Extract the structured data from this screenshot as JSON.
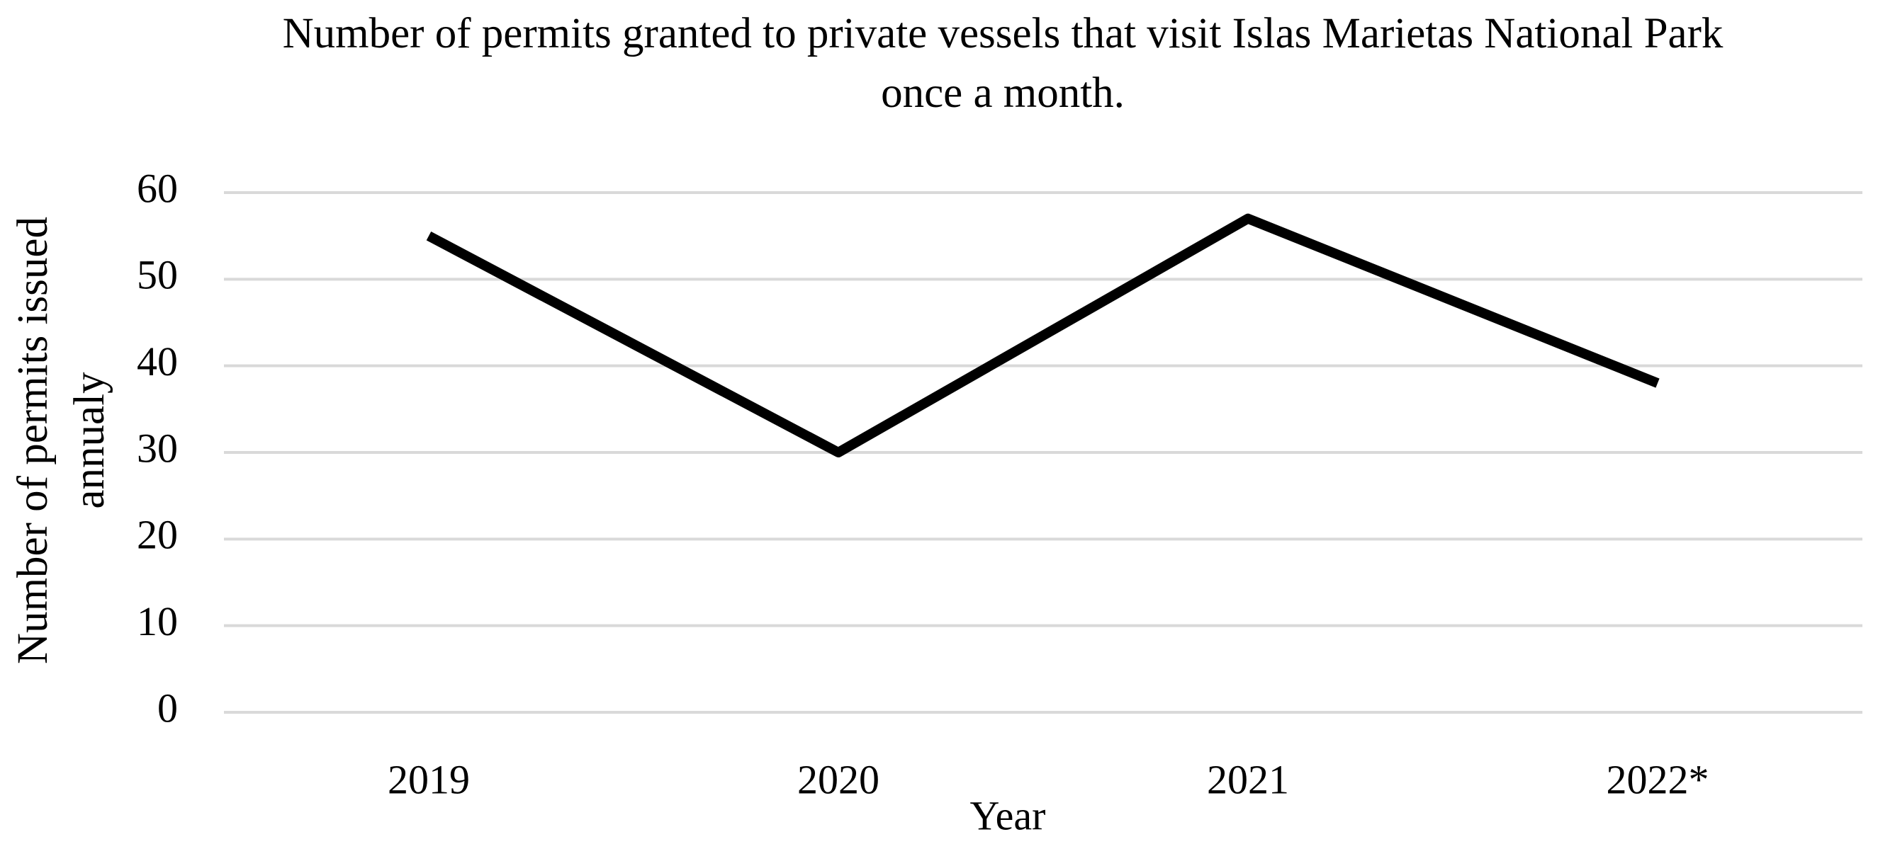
{
  "chart_data": {
    "type": "line",
    "title": "Number of permits granted to private vessels that visit Islas Marietas National Park once a month.",
    "x_label": "Year",
    "y_label": "Number of permits issued annualy",
    "categories": [
      "2019",
      "2020",
      "2021",
      "2022*"
    ],
    "series": [
      {
        "color": "#000000",
        "values": [
          55,
          30,
          57,
          38
        ]
      }
    ],
    "ylim": [
      0,
      60
    ],
    "yticks": [
      0,
      10,
      20,
      30,
      40,
      50,
      60
    ],
    "grid": true
  }
}
